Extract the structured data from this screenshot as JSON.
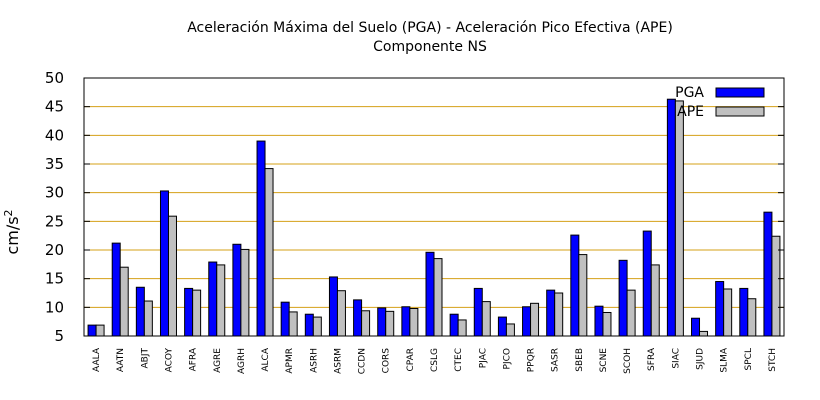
{
  "chart_data": {
    "type": "bar",
    "title_lines": [
      "Aceleración Máxima del Suelo (PGA) -  Aceleración Pico Efectiva (APE)",
      "Componente NS"
    ],
    "ylabel": "cm/s",
    "ylabel_superscript": "2",
    "xlabel": "",
    "ylim": [
      5,
      50
    ],
    "yticks": [
      5,
      10,
      15,
      20,
      25,
      30,
      35,
      40,
      45,
      50
    ],
    "grid": true,
    "grid_color": "#d4a017",
    "legend_position": "top-right",
    "categories": [
      "AALA",
      "AATN",
      "ABJT",
      "ACOY",
      "AFRA",
      "AGRE",
      "AGRH",
      "ALCA",
      "APMR",
      "ASRH",
      "ASRM",
      "CCDN",
      "CORS",
      "CPAR",
      "CSLG",
      "CTEC",
      "PJAC",
      "PJCO",
      "PPQR",
      "SASR",
      "SBEB",
      "SCNE",
      "SCOH",
      "SFRA",
      "SIAC",
      "SJUD",
      "SLMA",
      "SPCL",
      "STCH"
    ],
    "series": [
      {
        "name": "PGA",
        "color": "#0000ff",
        "values": [
          6.9,
          21.2,
          13.5,
          30.3,
          13.3,
          17.9,
          21.0,
          39.0,
          10.9,
          8.8,
          15.3,
          11.3,
          9.9,
          10.1,
          19.6,
          8.8,
          13.3,
          8.3,
          10.1,
          13.0,
          22.6,
          10.2,
          18.2,
          23.3,
          46.3,
          8.1,
          14.5,
          13.3,
          26.6
        ]
      },
      {
        "name": "APE",
        "color": "#c0c0c0",
        "values": [
          6.9,
          17.0,
          11.1,
          25.9,
          13.0,
          17.4,
          20.1,
          34.2,
          9.2,
          8.3,
          12.9,
          9.4,
          9.3,
          9.8,
          18.5,
          7.8,
          11.0,
          7.1,
          10.7,
          12.5,
          19.2,
          9.1,
          13.0,
          17.4,
          46.0,
          5.8,
          13.2,
          11.5,
          22.4
        ]
      }
    ]
  }
}
